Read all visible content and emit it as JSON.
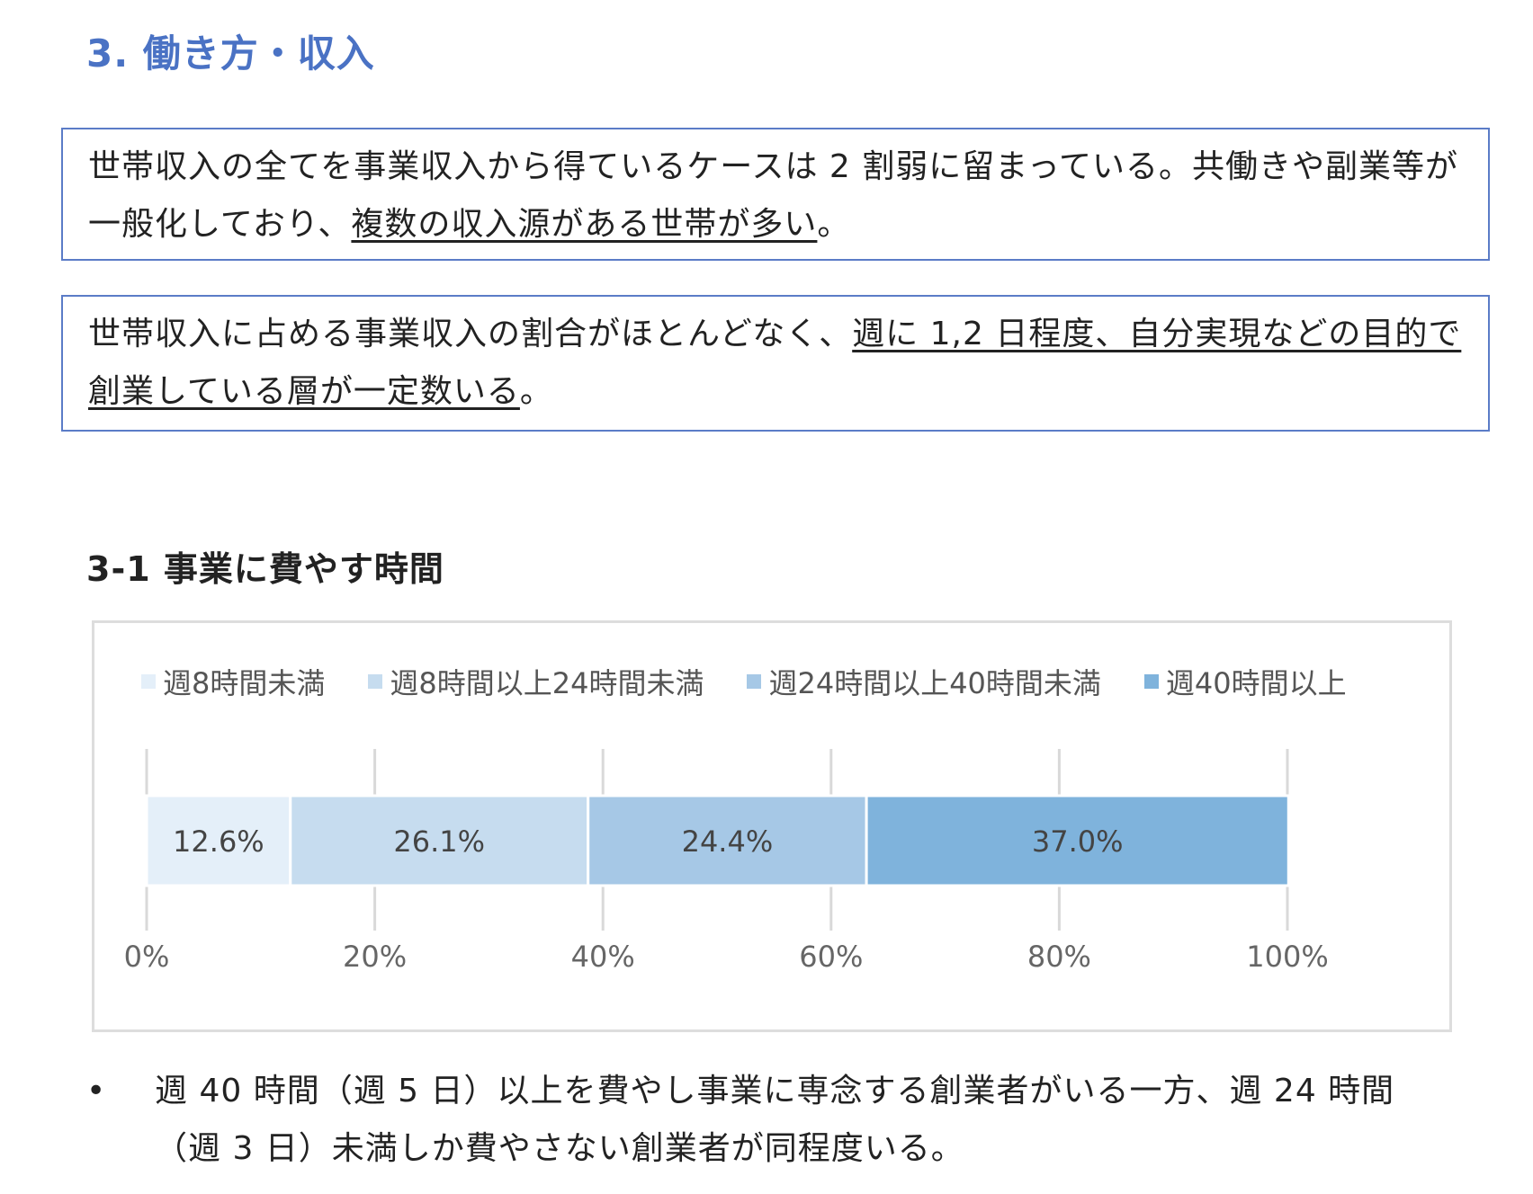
{
  "section": {
    "title": "3. 働き方・収入"
  },
  "callouts": [
    {
      "text_plain": "世帯収入の全てを事業収入から得ているケースは 2 割弱に留まっている。共働きや副業等が一般化しており、",
      "text_underlined": "複数の収入源がある世帯が多い",
      "text_tail": "。"
    },
    {
      "text_plain": "世帯収入に占める事業収入の割合がほとんどなく、",
      "text_underlined": "週に 1,2 日程度、自分実現などの目的で創業している層が一定数いる",
      "text_tail": "。"
    }
  ],
  "subsection": {
    "title": "3-1  事業に費やす時間"
  },
  "chart_data": {
    "type": "bar",
    "orientation": "horizontal",
    "stacked": true,
    "title": "",
    "xlabel": "",
    "ylabel": "",
    "xlim": [
      0,
      100
    ],
    "x_ticks": [
      "0%",
      "20%",
      "40%",
      "60%",
      "80%",
      "100%"
    ],
    "x_tick_values": [
      0,
      20,
      40,
      60,
      80,
      100
    ],
    "grid": true,
    "legend_position": "top",
    "series": [
      {
        "name": "週8時間未満",
        "value": 12.6,
        "label": "12.6%",
        "color": "#e4eff9"
      },
      {
        "name": "週8時間以上24時間未満",
        "value": 26.1,
        "label": "26.1%",
        "color": "#c6dcef"
      },
      {
        "name": "週24時間以上40時間未満",
        "value": 24.4,
        "label": "24.4%",
        "color": "#a6c8e6"
      },
      {
        "name": "週40時間以上",
        "value": 37.0,
        "label": "37.0%",
        "color": "#7fb3dc"
      }
    ]
  },
  "bullet": {
    "symbol": "•",
    "text": "週 40 時間（週 5 日）以上を費やし事業に専念する創業者がいる一方、週 24 時間（週 3 日）未満しか費やさない創業者が同程度いる。"
  }
}
